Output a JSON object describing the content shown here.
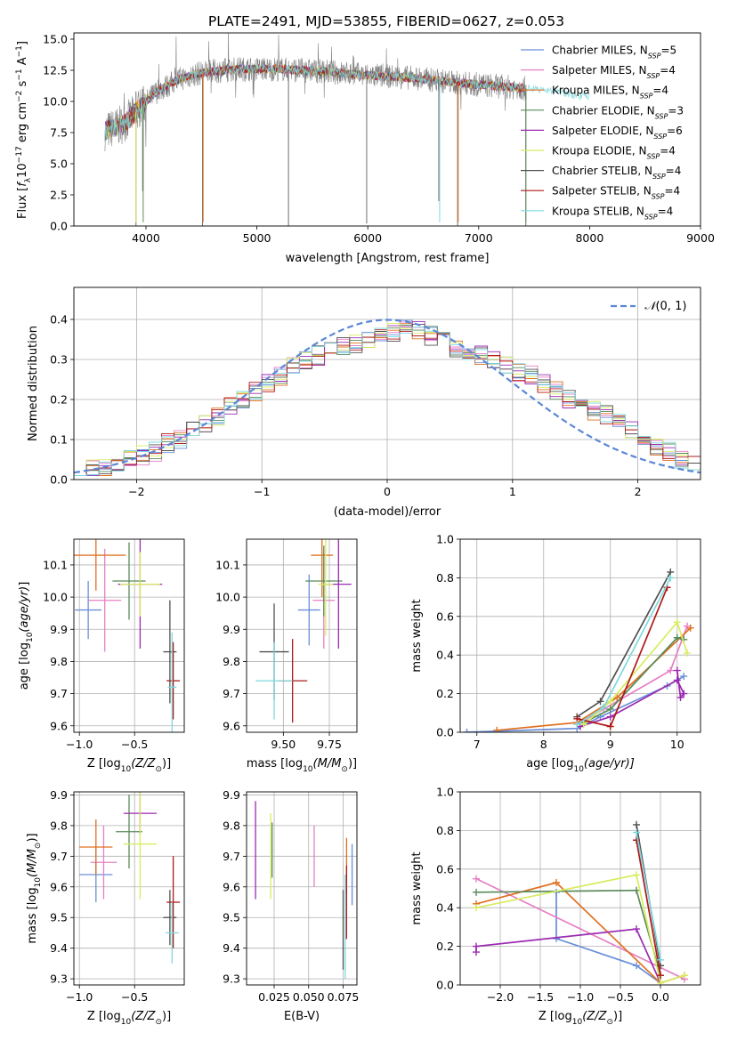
{
  "figure": {
    "title": "PLATE=2491, MJD=53855, FIBERID=0627, z=0.053"
  },
  "colors": {
    "series": [
      "#6a8ed8",
      "#e77fc4",
      "#e07020",
      "#5a8a5a",
      "#9a2ab0",
      "#d8ec60",
      "#505050",
      "#b01818",
      "#7fd8de"
    ],
    "gauss": "#5b87d6",
    "raw": "#808080",
    "grid": "#b0b0b0"
  },
  "chart_data": [
    {
      "id": "spectrum",
      "type": "line",
      "title": "PLATE=2491, MJD=53855, FIBERID=0627, z=0.053",
      "xlabel": "wavelength [Angstrom, rest frame]",
      "ylabel_parts": [
        "Flux [",
        "f",
        "λ",
        "10",
        "−17",
        " erg cm",
        "−2",
        " s",
        "−1",
        " A",
        "−1",
        "]"
      ],
      "xlim": [
        3350,
        9000
      ],
      "ylim": [
        0,
        15.5
      ],
      "xticks": [
        4000,
        5000,
        6000,
        7000,
        8000,
        9000
      ],
      "yticks": [
        0.0,
        2.5,
        5.0,
        7.5,
        10.0,
        12.5,
        15.0
      ],
      "ytick_labels": [
        "0.0",
        "2.5",
        "5.0",
        "7.5",
        "10.0",
        "12.5",
        "15.0"
      ],
      "grid": false,
      "legend": "top-right",
      "raw_range": [
        3630,
        7430
      ],
      "legend_items": [
        {
          "name": "Chabrier MILES",
          "nssp": "5"
        },
        {
          "name": "Salpeter MILES",
          "nssp": "4"
        },
        {
          "name": "Kroupa MILES",
          "nssp": "4"
        },
        {
          "name": "Chabrier ELODIE",
          "nssp": "3"
        },
        {
          "name": "Salpeter ELODIE",
          "nssp": "6"
        },
        {
          "name": "Kroupa ELODIE",
          "nssp": "4"
        },
        {
          "name": "Chabrier STELIB",
          "nssp": "4"
        },
        {
          "name": "Salpeter STELIB",
          "nssp": "4"
        },
        {
          "name": "Kroupa STELIB",
          "nssp": "4"
        }
      ],
      "legend_prefix": "N",
      "legend_sub": "SSP",
      "continuum": [
        [
          3630,
          7.6
        ],
        [
          3800,
          8.2
        ],
        [
          3950,
          9.5
        ],
        [
          4100,
          10.8
        ],
        [
          4300,
          11.8
        ],
        [
          4500,
          12.3
        ],
        [
          4800,
          12.6
        ],
        [
          5200,
          12.6
        ],
        [
          5600,
          12.4
        ],
        [
          6000,
          12.1
        ],
        [
          6400,
          11.9
        ],
        [
          6800,
          11.5
        ],
        [
          7200,
          11.2
        ],
        [
          7500,
          11.0
        ],
        [
          8000,
          10.4
        ],
        [
          8500,
          10.0
        ],
        [
          9000,
          9.6
        ]
      ],
      "model_range": [
        [
          3630,
          7430
        ],
        [
          3630,
          7430
        ],
        [
          3630,
          7430
        ],
        [
          3630,
          7430
        ],
        [
          3630,
          7430
        ],
        [
          3630,
          7430
        ],
        [
          3630,
          7430
        ],
        [
          3630,
          7430
        ],
        [
          3630,
          8000
        ]
      ],
      "spikes": [
        {
          "x": 3910,
          "ymin": 0,
          "ymax": 10.8
        },
        {
          "x": 3970,
          "ymin": 2.8,
          "ymax": 11.0
        },
        {
          "x": 4510,
          "ymin": 0,
          "ymax": 12.3
        },
        {
          "x": 5285,
          "ymin": 0,
          "ymax": 12.6
        },
        {
          "x": 5990,
          "ymin": 0.2,
          "ymax": 12.1
        },
        {
          "x": 6640,
          "ymin": 2.0,
          "ymax": 11.7
        },
        {
          "x": 6810,
          "ymin": 0,
          "ymax": 11.5
        },
        {
          "x": 7425,
          "ymin": 0,
          "ymax": 11.1
        }
      ]
    },
    {
      "id": "residuals",
      "type": "histogram",
      "xlabel": "(data-model)/error",
      "ylabel": "Normed distribution",
      "xlim": [
        -2.5,
        2.5
      ],
      "ylim": [
        0,
        0.48
      ],
      "xticks": [
        -2,
        -1,
        0,
        1,
        2
      ],
      "yticks": [
        0.0,
        0.1,
        0.2,
        0.3,
        0.4
      ],
      "ytick_labels": [
        "0.0",
        "0.1",
        "0.2",
        "0.3",
        "0.4"
      ],
      "grid": true,
      "legend": "top-right",
      "gauss_label_prefix": "𝒩",
      "gauss_label_args": "(0, 1)",
      "bin_edges_start": -2.5,
      "bin_width": 0.1,
      "base_values": [
        0.02,
        0.03,
        0.03,
        0.04,
        0.05,
        0.06,
        0.07,
        0.09,
        0.1,
        0.12,
        0.14,
        0.16,
        0.18,
        0.2,
        0.22,
        0.24,
        0.26,
        0.28,
        0.3,
        0.31,
        0.32,
        0.33,
        0.34,
        0.35,
        0.36,
        0.37,
        0.38,
        0.37,
        0.36,
        0.35,
        0.33,
        0.32,
        0.31,
        0.3,
        0.29,
        0.27,
        0.26,
        0.24,
        0.22,
        0.2,
        0.19,
        0.17,
        0.16,
        0.14,
        0.12,
        0.1,
        0.08,
        0.07,
        0.05,
        0.04
      ]
    },
    {
      "id": "age_vs_Z",
      "type": "errorbar",
      "xlabel_prefix": "Z [log",
      "xlabel_sub": "10",
      "xlabel_suffix": "(Z/Z",
      "xlabel_end": ")]",
      "ylabel": "age  [log10(age/yr)]",
      "xlim": [
        -1.05,
        -0.05
      ],
      "ylim": [
        9.58,
        10.18
      ],
      "xticks": [
        -1.0,
        -0.5
      ],
      "xtick_labels": [
        "−1.0",
        "−0.5"
      ],
      "yticks": [
        9.6,
        9.7,
        9.8,
        9.9,
        10.0,
        10.1
      ],
      "ytick_labels": [
        "9.6",
        "9.7",
        "9.8",
        "9.9",
        "10.0",
        "10.1"
      ],
      "grid": true,
      "points": [
        {
          "x": -0.92,
          "y": 9.96,
          "xerr": 0.12,
          "yerr": 0.09
        },
        {
          "x": -0.77,
          "y": 9.99,
          "xerr": 0.15,
          "yerr": 0.16
        },
        {
          "x": -0.85,
          "y": 10.13,
          "xerr": 0.27,
          "yerr": 0.11
        },
        {
          "x": -0.55,
          "y": 10.05,
          "xerr": 0.15,
          "yerr": 0.12
        },
        {
          "x": -0.45,
          "y": 10.04,
          "xerr": 0.2,
          "yerr": 0.2
        },
        {
          "x": -0.45,
          "y": 10.04,
          "xerr": 0.18,
          "yerr": 0.1
        },
        {
          "x": -0.18,
          "y": 9.83,
          "xerr": 0.06,
          "yerr": 0.16
        },
        {
          "x": -0.15,
          "y": 9.74,
          "xerr": 0.06,
          "yerr": 0.12
        },
        {
          "x": -0.16,
          "y": 9.72,
          "xerr": 0.04,
          "yerr": 0.17
        }
      ]
    },
    {
      "id": "age_vs_mass",
      "type": "errorbar",
      "xlabel_prefix": "mass [log",
      "xlabel_sub": "10",
      "xlabel_suffix": "(M/M",
      "xlabel_end": ")]",
      "xlim": [
        9.3,
        9.9
      ],
      "ylim": [
        9.58,
        10.18
      ],
      "xticks": [
        9.5,
        9.75
      ],
      "xtick_labels": [
        "9.50",
        "9.75"
      ],
      "yticks": [
        9.6,
        9.7,
        9.8,
        9.9,
        10.0,
        10.1
      ],
      "ytick_labels": [
        "9.6",
        "9.7",
        "9.8",
        "9.9",
        "10.0",
        "10.1"
      ],
      "grid": true,
      "points": [
        {
          "x": 9.64,
          "y": 9.96,
          "xerr": 0.06,
          "yerr": 0.11
        },
        {
          "x": 9.72,
          "y": 9.99,
          "xerr": 0.06,
          "yerr": 0.15
        },
        {
          "x": 9.71,
          "y": 10.13,
          "xerr": 0.06,
          "yerr": 0.13
        },
        {
          "x": 9.72,
          "y": 10.05,
          "xerr": 0.1,
          "yerr": 0.11
        },
        {
          "x": 9.8,
          "y": 10.04,
          "xerr": 0.07,
          "yerr": 0.2
        },
        {
          "x": 9.73,
          "y": 10.04,
          "xerr": 0.04,
          "yerr": 0.16
        },
        {
          "x": 9.45,
          "y": 9.83,
          "xerr": 0.08,
          "yerr": 0.15
        },
        {
          "x": 9.55,
          "y": 9.74,
          "xerr": 0.08,
          "yerr": 0.13
        },
        {
          "x": 9.45,
          "y": 9.74,
          "xerr": 0.1,
          "yerr": 0.12
        }
      ]
    },
    {
      "id": "weight_vs_age",
      "type": "line",
      "xlabel_prefix": "age  [log",
      "xlabel_sub": "10",
      "xlabel_suffix": "(age/yr)]",
      "ylabel": "mass weight",
      "xlim": [
        6.75,
        10.35
      ],
      "ylim": [
        0,
        1.0
      ],
      "xticks": [
        7,
        8,
        9,
        10
      ],
      "yticks": [
        0.0,
        0.2,
        0.4,
        0.6,
        0.8,
        1.0
      ],
      "ytick_labels": [
        "0.0",
        "0.2",
        "0.4",
        "0.6",
        "0.8",
        "1.0"
      ],
      "grid": true,
      "series": [
        {
          "x": [
            6.85,
            8.5,
            8.85,
            9.85,
            10.1
          ],
          "y": [
            0.0,
            0.02,
            0.08,
            0.24,
            0.29
          ]
        },
        {
          "x": [
            8.5,
            8.9,
            9.9,
            10.15
          ],
          "y": [
            0.04,
            0.12,
            0.32,
            0.55
          ]
        },
        {
          "x": [
            7.3,
            8.5,
            9.1,
            10.2
          ],
          "y": [
            0.01,
            0.05,
            0.18,
            0.54
          ]
        },
        {
          "x": [
            8.6,
            9.0,
            10.0,
            10.1
          ],
          "y": [
            0.05,
            0.12,
            0.49,
            0.48
          ]
        },
        {
          "x": [
            8.55,
            9.0,
            10.0,
            10.1,
            10.05,
            10.0
          ],
          "y": [
            0.03,
            0.08,
            0.27,
            0.2,
            0.18,
            0.32
          ]
        },
        {
          "x": [
            8.6,
            9.0,
            10.0,
            10.15
          ],
          "y": [
            0.04,
            0.16,
            0.57,
            0.41
          ]
        },
        {
          "x": [
            8.5,
            8.85,
            9.9
          ],
          "y": [
            0.08,
            0.16,
            0.83
          ]
        },
        {
          "x": [
            8.5,
            9.0,
            9.85
          ],
          "y": [
            0.07,
            0.03,
            0.75
          ]
        },
        {
          "x": [
            8.5,
            8.9,
            9.9
          ],
          "y": [
            0.04,
            0.13,
            0.8
          ]
        }
      ]
    },
    {
      "id": "mass_vs_Z",
      "type": "errorbar",
      "xlabel_prefix": "Z [log",
      "xlabel_sub": "10",
      "xlabel_suffix": "(Z/Z",
      "xlabel_end": ")]",
      "ylabel": "mass [log10(M/M☉)]",
      "xlim": [
        -1.05,
        -0.05
      ],
      "ylim": [
        9.28,
        9.91
      ],
      "xticks": [
        -1.0,
        -0.5
      ],
      "xtick_labels": [
        "−1.0",
        "−0.5"
      ],
      "yticks": [
        9.3,
        9.4,
        9.5,
        9.6,
        9.7,
        9.8,
        9.9
      ],
      "ytick_labels": [
        "9.3",
        "9.4",
        "9.5",
        "9.6",
        "9.7",
        "9.8",
        "9.9"
      ],
      "grid": true,
      "points": [
        {
          "x": -0.85,
          "y": 9.64,
          "xerr": 0.15,
          "yerr": 0.09
        },
        {
          "x": -0.78,
          "y": 9.68,
          "xerr": 0.12,
          "yerr": 0.12
        },
        {
          "x": -0.85,
          "y": 9.73,
          "xerr": 0.15,
          "yerr": 0.09
        },
        {
          "x": -0.55,
          "y": 9.78,
          "xerr": 0.12,
          "yerr": 0.12
        },
        {
          "x": -0.45,
          "y": 9.84,
          "xerr": 0.15,
          "yerr": 0.07
        },
        {
          "x": -0.45,
          "y": 9.74,
          "xerr": 0.15,
          "yerr": 0.18
        },
        {
          "x": -0.18,
          "y": 9.5,
          "xerr": 0.06,
          "yerr": 0.09
        },
        {
          "x": -0.15,
          "y": 9.55,
          "xerr": 0.06,
          "yerr": 0.15
        },
        {
          "x": -0.16,
          "y": 9.45,
          "xerr": 0.06,
          "yerr": 0.1
        }
      ]
    },
    {
      "id": "mass_vs_ebv",
      "type": "errorbar",
      "xlabel": "E(B-V)",
      "xlim": [
        0.005,
        0.085
      ],
      "ylim": [
        9.28,
        9.91
      ],
      "xticks": [
        0.025,
        0.05,
        0.075
      ],
      "xtick_labels": [
        "0.025",
        "0.050",
        "0.075"
      ],
      "yticks": [
        9.3,
        9.4,
        9.5,
        9.6,
        9.7,
        9.8,
        9.9
      ],
      "ytick_labels": [
        "9.3",
        "9.4",
        "9.5",
        "9.6",
        "9.7",
        "9.8",
        "9.9"
      ],
      "grid": true,
      "points": [
        {
          "x": 0.0815,
          "y": 9.64,
          "xerr": 0,
          "yerr": 0.1
        },
        {
          "x": 0.054,
          "y": 9.7,
          "xerr": 0,
          "yerr": 0.1
        },
        {
          "x": 0.0775,
          "y": 9.67,
          "xerr": 0,
          "yerr": 0.09
        },
        {
          "x": 0.0235,
          "y": 9.72,
          "xerr": 0,
          "yerr": 0.09
        },
        {
          "x": 0.0115,
          "y": 9.72,
          "xerr": 0,
          "yerr": 0.16
        },
        {
          "x": 0.0225,
          "y": 9.7,
          "xerr": 0,
          "yerr": 0.14
        },
        {
          "x": 0.075,
          "y": 9.46,
          "xerr": 0,
          "yerr": 0.13
        },
        {
          "x": 0.0775,
          "y": 9.55,
          "xerr": 0,
          "yerr": 0.12
        },
        {
          "x": 0.0765,
          "y": 9.47,
          "xerr": 0,
          "yerr": 0.17
        }
      ]
    },
    {
      "id": "weight_vs_Z",
      "type": "line",
      "xlabel_prefix": "Z [log",
      "xlabel_sub": "10",
      "xlabel_suffix": "(Z/Z",
      "xlabel_end": ")]",
      "ylabel": "mass weight",
      "xlim": [
        -2.5,
        0.5
      ],
      "ylim": [
        0,
        1.0
      ],
      "xticks": [
        -2.0,
        -1.5,
        -1.0,
        -0.5,
        0.0
      ],
      "xtick_labels": [
        "−2.0",
        "−1.5",
        "−1.0",
        "−0.5",
        "0.0"
      ],
      "yticks": [
        0.0,
        0.2,
        0.4,
        0.6,
        0.8,
        1.0
      ],
      "ytick_labels": [
        "0.0",
        "0.2",
        "0.4",
        "0.6",
        "0.8",
        "1.0"
      ],
      "grid": true,
      "series": [
        {
          "x": [
            -1.3,
            -1.3,
            -0.3,
            0.0
          ],
          "y": [
            0.48,
            0.24,
            0.1,
            0.01
          ]
        },
        {
          "x": [
            -2.3,
            0.3
          ],
          "y": [
            0.55,
            0.03
          ]
        },
        {
          "x": [
            -2.3,
            -1.3,
            0.0,
            0.3
          ],
          "y": [
            0.42,
            0.53,
            0.01,
            0.05
          ]
        },
        {
          "x": [
            -2.3,
            -0.3,
            0.0
          ],
          "y": [
            0.48,
            0.49,
            0.05
          ]
        },
        {
          "x": [
            -2.3,
            -2.3,
            -0.3,
            0.0
          ],
          "y": [
            0.17,
            0.2,
            0.29,
            0.01
          ]
        },
        {
          "x": [
            -2.3,
            -0.3,
            0.0,
            0.3
          ],
          "y": [
            0.4,
            0.57,
            0.01,
            0.05
          ]
        },
        {
          "x": [
            -0.3,
            0.0
          ],
          "y": [
            0.83,
            0.1
          ]
        },
        {
          "x": [
            -0.3,
            0.0
          ],
          "y": [
            0.75,
            0.05
          ]
        },
        {
          "x": [
            -0.3,
            0.0
          ],
          "y": [
            0.79,
            0.13
          ]
        }
      ]
    }
  ]
}
